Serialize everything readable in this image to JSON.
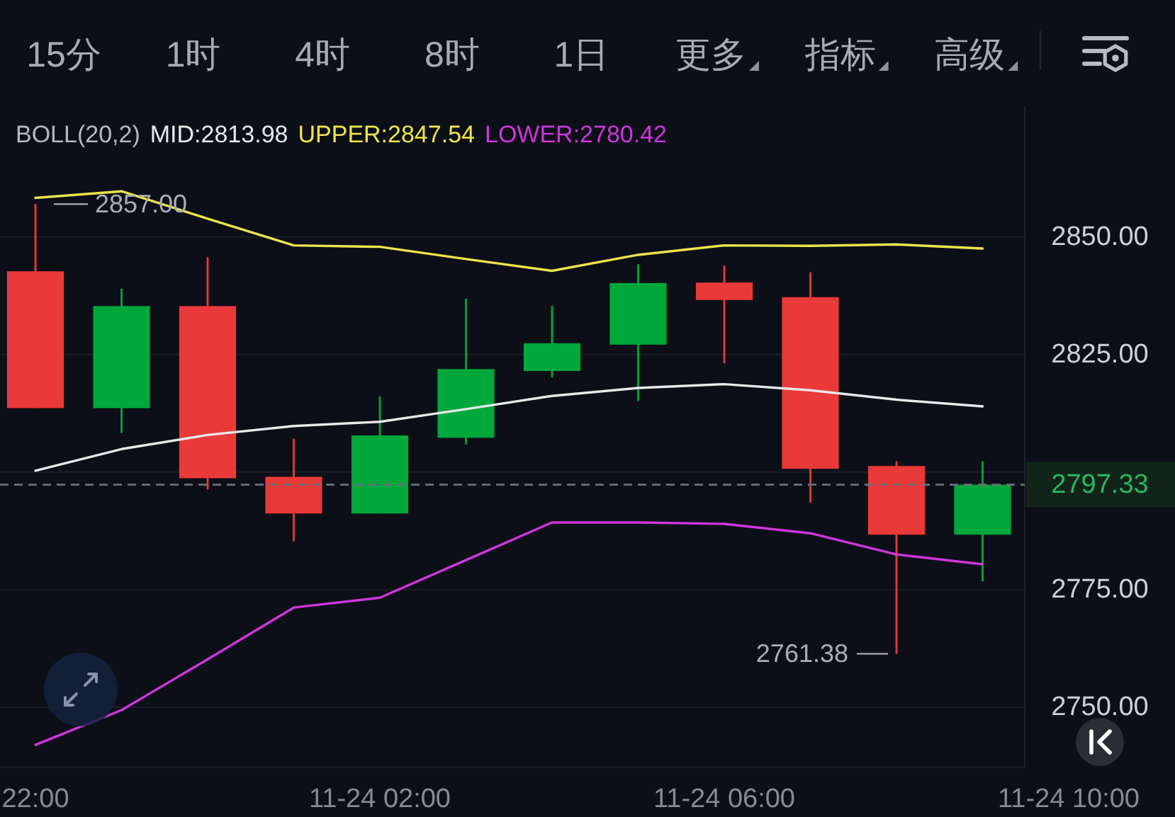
{
  "chart_data": {
    "type": "candlestick",
    "legend_title": "BOLL(20,2)",
    "legend": "top left",
    "grid": "y",
    "categories": [
      "22:00",
      null,
      null,
      null,
      "11-24 02:00",
      null,
      null,
      null,
      "11-24 06:00",
      null,
      null,
      null,
      "11-24 10:00"
    ],
    "ohlc": [
      [
        2842.7,
        2857.0,
        2813.6,
        2813.6
      ],
      [
        2813.6,
        2839.0,
        2808.3,
        2835.3
      ],
      [
        2835.3,
        2845.7,
        2796.3,
        2798.7
      ],
      [
        2799.0,
        2807.1,
        2785.3,
        2791.2
      ],
      [
        2791.2,
        2816.1,
        2791.2,
        2807.8
      ],
      [
        2807.3,
        2836.9,
        2805.9,
        2821.9
      ],
      [
        2821.5,
        2835.3,
        2820.1,
        2827.4
      ],
      [
        2827.1,
        2844.2,
        2815.1,
        2840.2
      ],
      [
        2840.3,
        2843.9,
        2823.1,
        2836.6
      ],
      [
        2837.2,
        2842.5,
        2793.5,
        2800.7
      ],
      [
        2801.3,
        2802.3,
        2761.38,
        2786.7
      ],
      [
        2786.7,
        2802.3,
        2776.8,
        2797.33
      ],
      null
    ],
    "colors": [
      "#ea3939",
      "#00a83c",
      "#ea3939",
      "#ea3939",
      "#00a83c",
      "#00a83c",
      "#00a83c",
      "#00a83c",
      "#ea3939",
      "#ea3939",
      "#ea3939",
      "#00a83c",
      null
    ],
    "value_labels": [
      "2857.00",
      null,
      null,
      null,
      null,
      null,
      null,
      null,
      null,
      null,
      "2761.38",
      null,
      null
    ],
    "series": [
      {
        "type": "line",
        "name": "MID:2813.98",
        "color": "#e8e8ea",
        "values": [
          2800.3,
          2804.9,
          2807.9,
          2809.8,
          2810.7,
          2813.4,
          2816.2,
          2817.9,
          2818.7,
          2817.4,
          2815.4,
          2813.98,
          null
        ]
      },
      {
        "type": "line",
        "name": "UPPER:2847.54",
        "color": "#ece44c",
        "values": [
          2858.3,
          2859.7,
          2853.9,
          2848.2,
          2847.9,
          2845.3,
          2842.8,
          2846.2,
          2848.2,
          2848.1,
          2848.4,
          2847.54,
          null
        ]
      },
      {
        "type": "line",
        "name": "LOWER:2780.42",
        "color": "#cf35dc",
        "values": [
          2742.0,
          2749.4,
          2760.2,
          2771.2,
          2773.3,
          2781.3,
          2789.3,
          2789.3,
          2789.0,
          2787.0,
          2782.5,
          2780.42,
          null
        ]
      }
    ],
    "ylim": [
      2737.3,
      2877.8
    ],
    "yticks": [
      {
        "value": 2750,
        "label": "2750.00"
      },
      {
        "value": 2775,
        "label": "2775.00"
      },
      {
        "value": 2797.33,
        "label": "2797.33"
      },
      {
        "value": 2800,
        "label": null
      },
      {
        "value": 2825,
        "label": "2825.00"
      },
      {
        "value": 2850,
        "label": "2850.00"
      }
    ],
    "ref_lines": [
      {
        "axis": "y",
        "value": 2797.33,
        "color": "#6b707c",
        "line_style": "dashed"
      }
    ],
    "annotations": [
      "15分",
      "1时",
      "4时",
      "8时",
      "1日",
      "更多",
      "指标",
      "高级"
    ]
  }
}
